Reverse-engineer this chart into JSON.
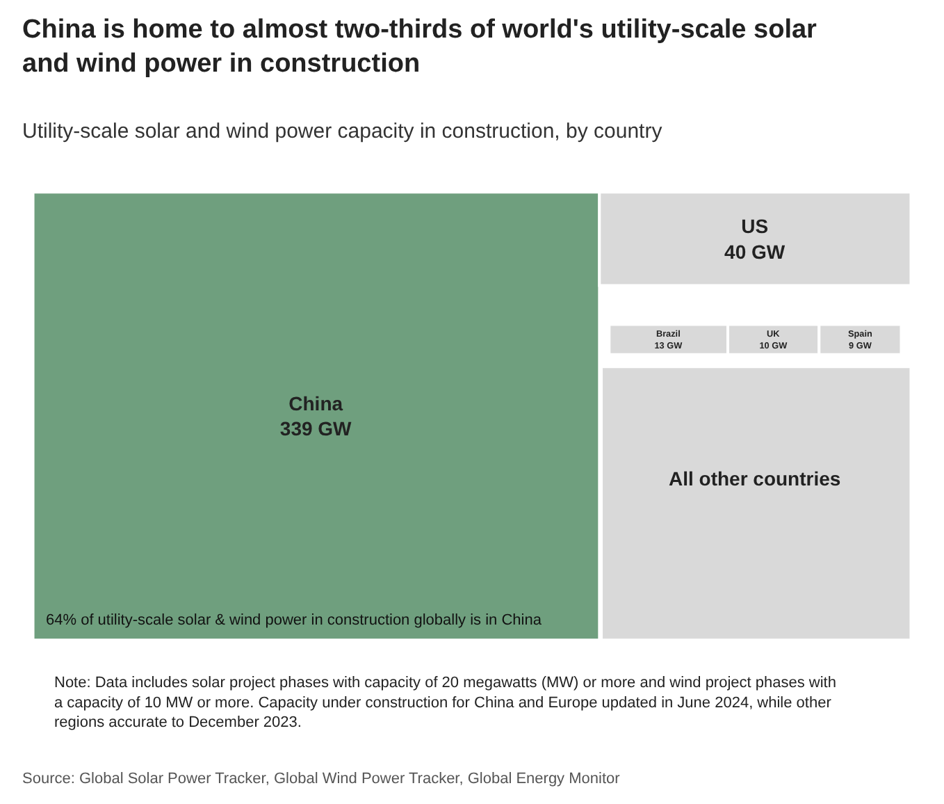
{
  "chart_data": {
    "type": "other",
    "title": "China is home to almost two-thirds of world's utility-scale solar and wind power in construction",
    "subtitle": "Utility-scale solar and wind power capacity in construction, by country",
    "categories": [
      "China",
      "US",
      "Brazil",
      "UK",
      "Spain",
      "All other countries"
    ],
    "values": [
      339,
      40,
      13,
      10,
      9,
      null
    ],
    "value_labels": [
      "339 GW",
      "40 GW",
      "13 GW",
      "10 GW",
      "9 GW",
      null
    ],
    "colors": [
      "#6f9f7e",
      "#d9d9d9",
      "#d9d9d9",
      "#d9d9d9",
      "#d9d9d9",
      "#d9d9d9"
    ],
    "annotations": [
      "64% of utility-scale solar & wind power in construction globally is in China",
      "Note: Data includes solar project phases with capacity of 20 megawatts (MW) or more and wind project phases with a capacity of 10 MW or more. Capacity under construction for China and Europe updated in June 2024, while other regions accurate to December 2023.",
      "Source: Global Solar Power Tracker, Global Wind Power Tracker, Global Energy Monitor"
    ]
  }
}
